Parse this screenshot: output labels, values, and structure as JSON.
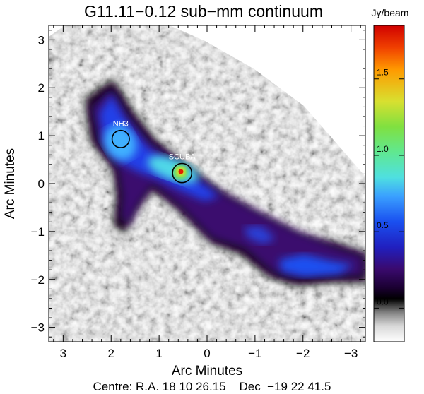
{
  "chart_data": {
    "type": "heatmap",
    "title": "G11.11−0.12 sub−mm continuum",
    "xlabel": "Arc Minutes",
    "ylabel": "Arc Minutes",
    "footer": "Centre: R.A. 18 10 26.15    Dec  −19 22 41.5",
    "xlim": [
      3.3,
      -3.3
    ],
    "ylim": [
      -3.3,
      3.3
    ],
    "x_ticks": [
      {
        "value": 3,
        "label": "3"
      },
      {
        "value": 2,
        "label": "2"
      },
      {
        "value": 1,
        "label": "1"
      },
      {
        "value": 0,
        "label": "0"
      },
      {
        "value": -1,
        "label": "−1"
      },
      {
        "value": -2,
        "label": "−2"
      },
      {
        "value": -3,
        "label": "−3"
      }
    ],
    "y_ticks": [
      {
        "value": 3,
        "label": "3"
      },
      {
        "value": 2,
        "label": "2"
      },
      {
        "value": 1,
        "label": "1"
      },
      {
        "value": 0,
        "label": "0"
      },
      {
        "value": -1,
        "label": "−1"
      },
      {
        "value": -2,
        "label": "−2"
      },
      {
        "value": -3,
        "label": "−3"
      }
    ],
    "colorbar": {
      "title": "Jy/beam",
      "range": [
        -0.22,
        1.85
      ],
      "ticks": [
        {
          "value": 0.0,
          "label": "0.0"
        },
        {
          "value": 0.5,
          "label": "0.5"
        },
        {
          "value": 1.0,
          "label": "1.0"
        },
        {
          "value": 1.5,
          "label": "1.5"
        }
      ],
      "colors": [
        "#ffffff",
        "#000000",
        "#3a0a6e",
        "#1a30e0",
        "#3aa0ff",
        "#4fe0d8",
        "#6ee060",
        "#e8e030",
        "#ff8000",
        "#e00000"
      ]
    },
    "annotations": [
      {
        "label": "NH3",
        "x": 1.8,
        "y": 0.93,
        "r": 0.18
      },
      {
        "label": "SCUBA",
        "x": 0.52,
        "y": 0.22,
        "r": 0.2
      }
    ]
  }
}
